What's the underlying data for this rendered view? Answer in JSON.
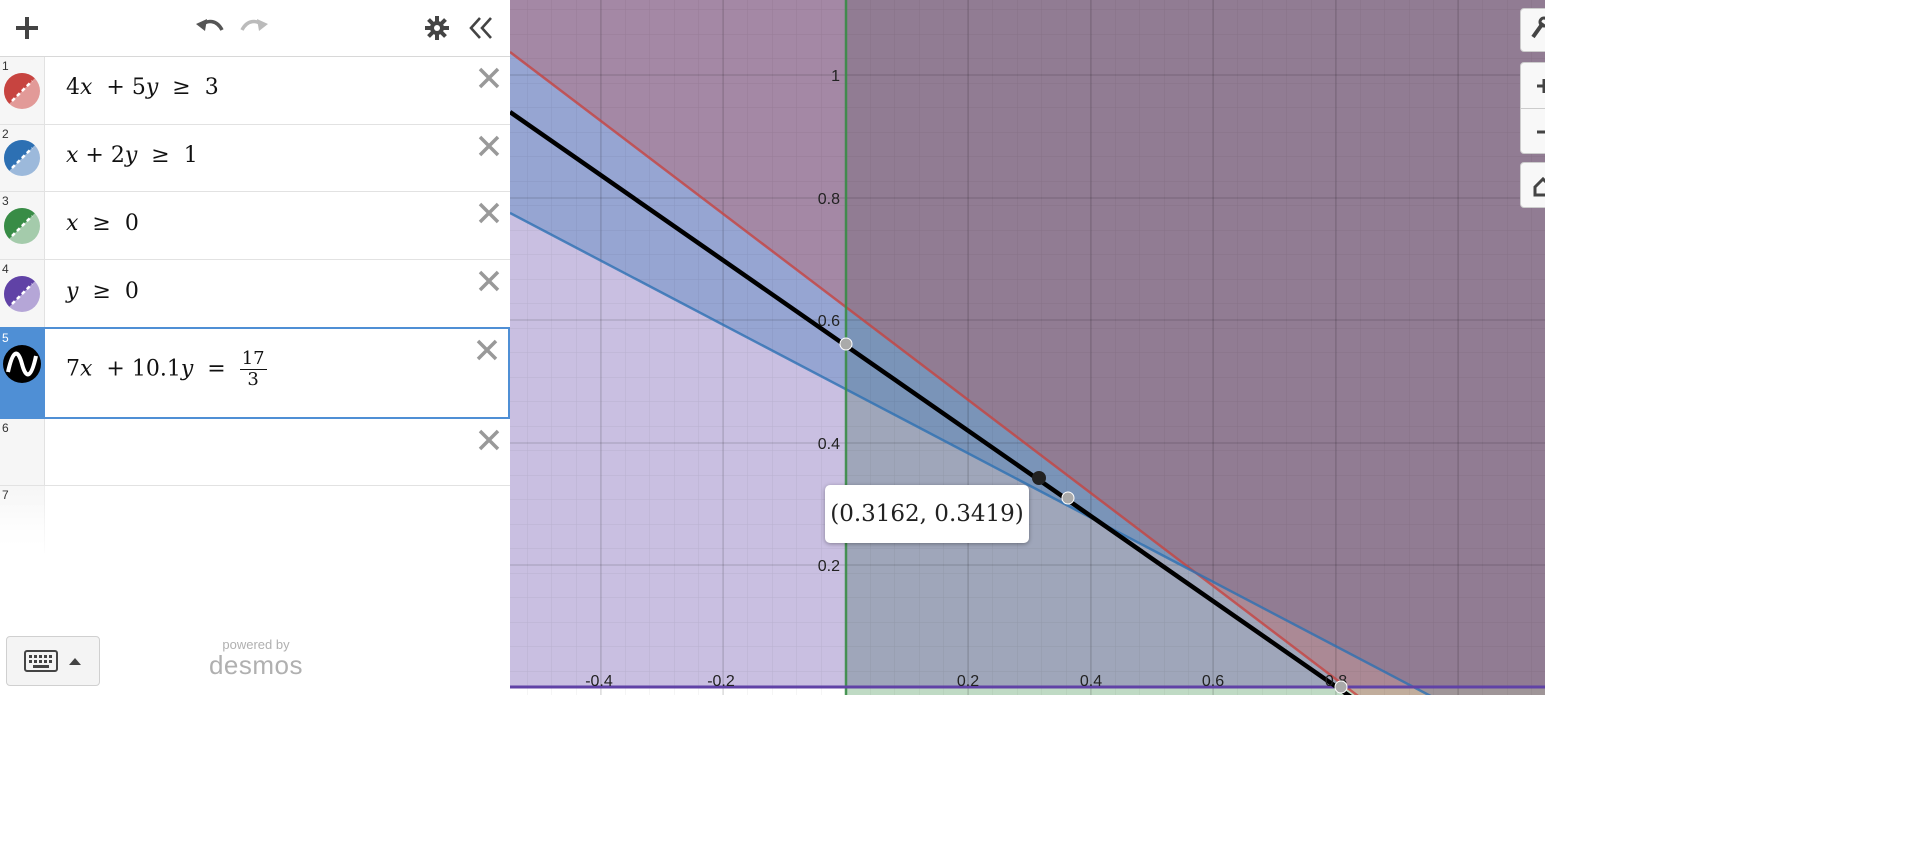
{
  "toolbar": {
    "add_icon": "plus-icon",
    "undo_icon": "undo-icon",
    "redo_icon": "redo-icon",
    "settings_icon": "gear-icon",
    "collapse_icon": "double-chevron-left-icon"
  },
  "expressions": [
    {
      "index": "1",
      "color": "#c74440",
      "kind": "inequality",
      "parts": {
        "a": "4",
        "b": "5",
        "op": "≥",
        "rhs": "3"
      }
    },
    {
      "index": "2",
      "color": "#2d70b3",
      "kind": "inequality",
      "parts": {
        "a": "",
        "b": "2",
        "op": "≥",
        "rhs": "1"
      }
    },
    {
      "index": "3",
      "color": "#388c46",
      "kind": "inequality",
      "text": {
        "var": "x",
        "op": "≥",
        "rhs": "0"
      }
    },
    {
      "index": "4",
      "color": "#6042a6",
      "kind": "inequality",
      "text": {
        "var": "y",
        "op": "≥",
        "rhs": "0"
      }
    },
    {
      "index": "5",
      "color": "#000000",
      "kind": "equation",
      "parts": {
        "a": "7",
        "b": "10.1",
        "op": "=",
        "num": "17",
        "den": "3"
      }
    },
    {
      "index": "6"
    },
    {
      "index": "7"
    }
  ],
  "branding": {
    "powered_by": "powered by",
    "name": "desmos"
  },
  "tooltip": {
    "label": "(0.3162, 0.3419)"
  },
  "graph": {
    "x_ticks": [
      "-0.4",
      "-0.2",
      "0.2",
      "0.4",
      "0.6",
      "0.8"
    ],
    "y_ticks": [
      "1",
      "0.8",
      "0.6",
      "0.4",
      "0.2"
    ]
  },
  "graph_controls": [
    "wrench-icon",
    "zoom-in-icon",
    "zoom-out-icon",
    "home-icon"
  ]
}
